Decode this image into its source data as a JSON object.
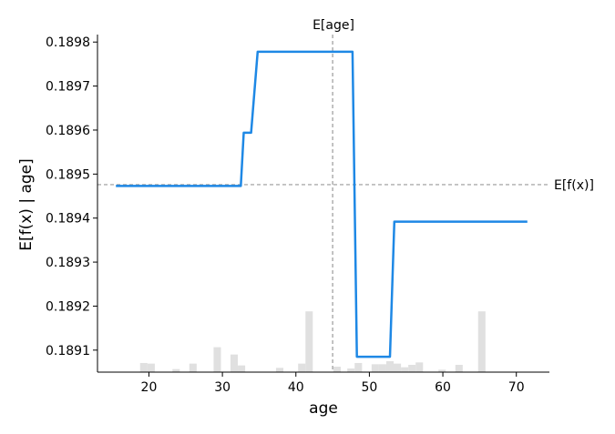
{
  "chart_data": {
    "type": "line",
    "title": "",
    "xlabel": "age",
    "ylabel": "E[f(x) | age]",
    "xlim": [
      13,
      74.5
    ],
    "ylim": [
      0.18905,
      0.189817
    ],
    "xticks": [
      20,
      30,
      40,
      50,
      60,
      70
    ],
    "yticks": [
      0.1891,
      0.1892,
      0.1893,
      0.1894,
      0.1895,
      0.1896,
      0.1897,
      0.1898
    ],
    "xtick_labels": [
      "20",
      "30",
      "40",
      "50",
      "60",
      "70"
    ],
    "ytick_labels": [
      "0.1891",
      "0.1892",
      "0.1893",
      "0.1894",
      "0.1895",
      "0.1896",
      "0.1897",
      "0.1898"
    ],
    "grid": false,
    "series": [
      {
        "color": "#1e88e5",
        "x": [
          15.5,
          32.5,
          32.9,
          33.9,
          34.8,
          47.7,
          48.3,
          52.8,
          53.4,
          71.5
        ],
        "y": [
          0.189473,
          0.189473,
          0.189594,
          0.189594,
          0.189778,
          0.189778,
          0.189085,
          0.189085,
          0.189392,
          0.189392
        ]
      }
    ],
    "reference_lines": {
      "vertical": {
        "x": 45,
        "label": "E[age]"
      },
      "horizontal": {
        "y": 0.189476,
        "label": "E[f(x)]"
      }
    },
    "histogram": {
      "color": "#e0e0e0",
      "max_relative_height": 0.18,
      "bins": [
        {
          "x0": 18.8,
          "x1": 19.8,
          "r": 0.15
        },
        {
          "x0": 19.8,
          "x1": 20.8,
          "r": 0.14
        },
        {
          "x0": 23.2,
          "x1": 24.2,
          "r": 0.05
        },
        {
          "x0": 25.5,
          "x1": 26.5,
          "r": 0.14
        },
        {
          "x0": 28.8,
          "x1": 29.8,
          "r": 0.41
        },
        {
          "x0": 31.1,
          "x1": 32.1,
          "r": 0.29
        },
        {
          "x0": 32.1,
          "x1": 33.1,
          "r": 0.11
        },
        {
          "x0": 34.4,
          "x1": 35.4,
          "r": 0.0
        },
        {
          "x0": 37.3,
          "x1": 38.3,
          "r": 0.07
        },
        {
          "x0": 40.3,
          "x1": 41.3,
          "r": 0.14
        },
        {
          "x0": 41.3,
          "x1": 42.3,
          "r": 1.0
        },
        {
          "x0": 45.1,
          "x1": 46.1,
          "r": 0.09
        },
        {
          "x0": 47.0,
          "x1": 48.0,
          "r": 0.06
        },
        {
          "x0": 48.0,
          "x1": 49.0,
          "r": 0.15
        },
        {
          "x0": 50.3,
          "x1": 51.3,
          "r": 0.13
        },
        {
          "x0": 51.3,
          "x1": 52.3,
          "r": 0.13
        },
        {
          "x0": 52.3,
          "x1": 53.3,
          "r": 0.18
        },
        {
          "x0": 53.3,
          "x1": 54.3,
          "r": 0.14
        },
        {
          "x0": 54.3,
          "x1": 55.3,
          "r": 0.08
        },
        {
          "x0": 55.3,
          "x1": 56.3,
          "r": 0.12
        },
        {
          "x0": 56.3,
          "x1": 57.3,
          "r": 0.16
        },
        {
          "x0": 59.4,
          "x1": 60.4,
          "r": 0.04
        },
        {
          "x0": 61.7,
          "x1": 62.7,
          "r": 0.12
        },
        {
          "x0": 64.8,
          "x1": 65.8,
          "r": 1.0
        }
      ]
    }
  }
}
